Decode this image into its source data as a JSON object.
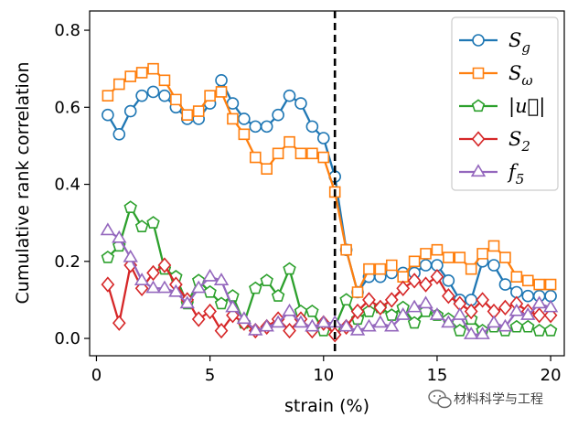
{
  "chart_data": {
    "type": "line",
    "xlabel": "strain (%)",
    "ylabel": "Cumulative rank correlation",
    "xlim": [
      -0.3,
      20.6
    ],
    "ylim": [
      -0.045,
      0.85
    ],
    "xticks": [
      0,
      5,
      10,
      15,
      20
    ],
    "yticks": [
      0.0,
      0.2,
      0.4,
      0.6,
      0.8
    ],
    "xtick_labels": [
      "0",
      "5",
      "10",
      "15",
      "20"
    ],
    "ytick_labels": [
      "0.0",
      "0.2",
      "0.4",
      "0.6",
      "0.8"
    ],
    "vline": {
      "x": 10.5,
      "style": "dashed",
      "color": "#000000"
    },
    "legend": {
      "position": "top-right"
    },
    "x": [
      0.5,
      1,
      1.5,
      2,
      2.5,
      3,
      3.5,
      4,
      4.5,
      5,
      5.5,
      6,
      6.5,
      7,
      7.5,
      8,
      8.5,
      9,
      9.5,
      10,
      10.5,
      11,
      11.5,
      12,
      12.5,
      13,
      13.5,
      14,
      14.5,
      15,
      15.5,
      16,
      16.5,
      17,
      17.5,
      18,
      18.5,
      19,
      19.5,
      20
    ],
    "series": [
      {
        "name": "S_g",
        "legend_main": "S",
        "legend_sub": "g",
        "color": "#1f77b4",
        "marker": "circle",
        "values": [
          0.58,
          0.53,
          0.59,
          0.63,
          0.64,
          0.63,
          0.6,
          0.57,
          0.57,
          0.61,
          0.67,
          0.61,
          0.57,
          0.55,
          0.55,
          0.58,
          0.63,
          0.61,
          0.55,
          0.52,
          0.42,
          0.23,
          0.12,
          0.16,
          0.16,
          0.17,
          0.17,
          0.17,
          0.19,
          0.19,
          0.15,
          0.1,
          0.1,
          0.2,
          0.19,
          0.14,
          0.12,
          0.11,
          0.11,
          0.11
        ]
      },
      {
        "name": "S_ω",
        "legend_main": "S",
        "legend_sub": "ω",
        "color": "#ff7f0e",
        "marker": "square",
        "values": [
          0.63,
          0.66,
          0.68,
          0.69,
          0.7,
          0.67,
          0.62,
          0.58,
          0.59,
          0.63,
          0.64,
          0.57,
          0.53,
          0.47,
          0.44,
          0.48,
          0.51,
          0.48,
          0.48,
          0.47,
          0.38,
          0.23,
          0.12,
          0.18,
          0.18,
          0.19,
          0.16,
          0.2,
          0.22,
          0.23,
          0.21,
          0.21,
          0.18,
          0.22,
          0.24,
          0.21,
          0.16,
          0.15,
          0.14,
          0.14
        ]
      },
      {
        "name": "|u⃗|",
        "legend_main": "|u⃗|",
        "legend_sub": "",
        "color": "#2ca02c",
        "marker": "pentagon",
        "values": [
          0.21,
          0.24,
          0.34,
          0.29,
          0.3,
          0.18,
          0.16,
          0.09,
          0.15,
          0.12,
          0.09,
          0.11,
          0.04,
          0.13,
          0.15,
          0.11,
          0.18,
          0.07,
          0.07,
          0.02,
          0.03,
          0.1,
          0.05,
          0.07,
          0.08,
          0.06,
          0.08,
          0.04,
          0.07,
          0.06,
          0.05,
          0.02,
          0.05,
          0.02,
          0.03,
          0.02,
          0.03,
          0.03,
          0.02,
          0.02
        ]
      },
      {
        "name": "S_2",
        "legend_main": "S",
        "legend_sub": "2",
        "color": "#d62728",
        "marker": "diamond",
        "values": [
          0.14,
          0.04,
          0.19,
          0.13,
          0.17,
          0.19,
          0.14,
          0.1,
          0.05,
          0.07,
          0.02,
          0.06,
          0.04,
          0.02,
          0.03,
          0.05,
          0.02,
          0.05,
          0.02,
          0.04,
          0.01,
          0.03,
          0.07,
          0.1,
          0.08,
          0.1,
          0.13,
          0.15,
          0.14,
          0.16,
          0.11,
          0.09,
          0.07,
          0.1,
          0.07,
          0.08,
          0.09,
          0.07,
          0.06,
          0.06
        ]
      },
      {
        "name": "f_5",
        "legend_main": "f",
        "legend_sub": "5",
        "color": "#9467bd",
        "marker": "triangle",
        "values": [
          0.28,
          0.26,
          0.21,
          0.15,
          0.13,
          0.13,
          0.12,
          0.09,
          0.13,
          0.16,
          0.15,
          0.08,
          0.05,
          0.02,
          0.03,
          0.04,
          0.07,
          0.04,
          0.03,
          0.04,
          0.04,
          0.03,
          0.02,
          0.03,
          0.04,
          0.03,
          0.06,
          0.08,
          0.09,
          0.06,
          0.04,
          0.06,
          0.01,
          0.01,
          0.04,
          0.03,
          0.07,
          0.06,
          0.09,
          0.08
        ]
      }
    ]
  },
  "watermark": {
    "text": "材料科学与工程"
  }
}
